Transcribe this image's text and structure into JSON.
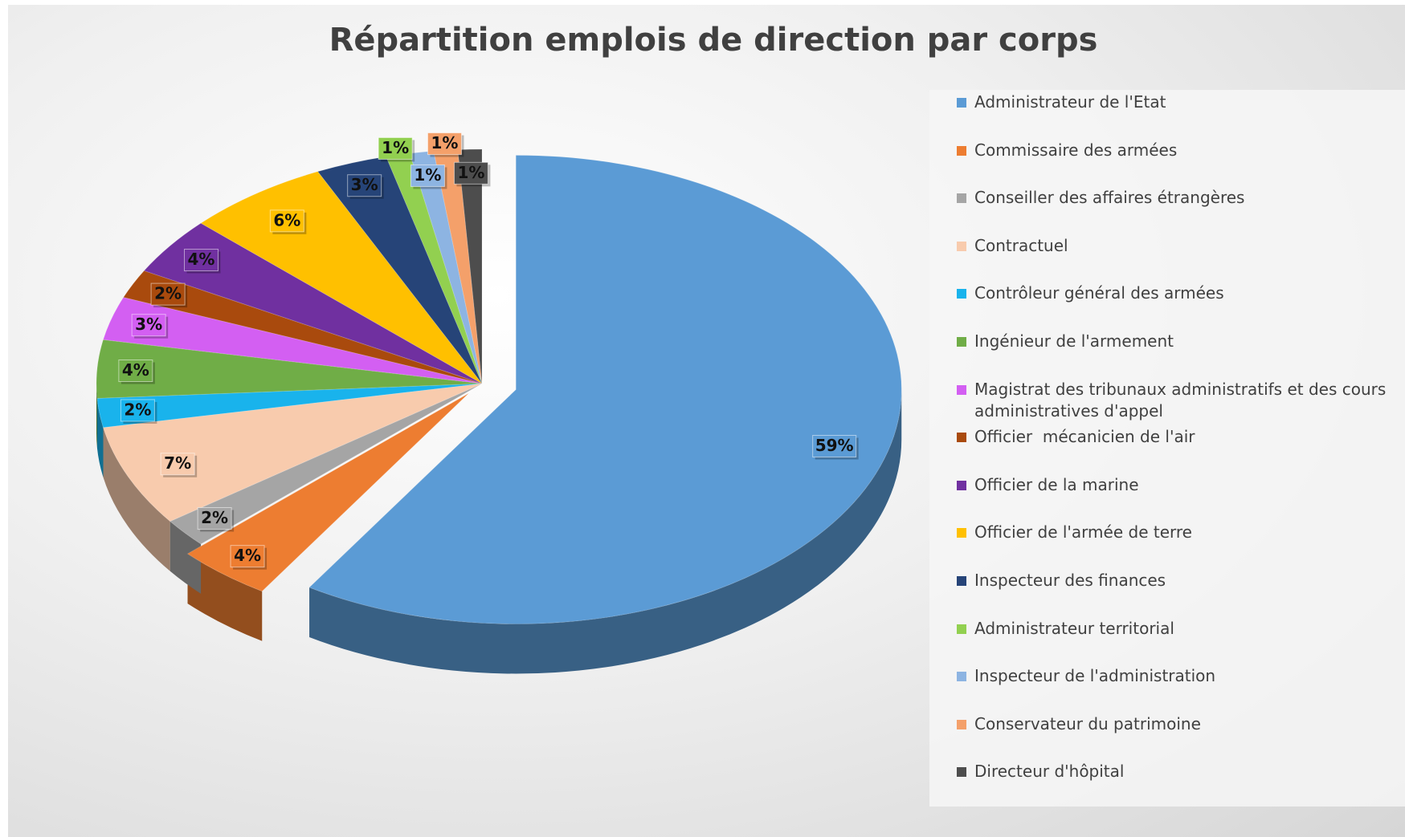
{
  "chart_data": {
    "type": "pie",
    "title": "Répartition emplois de direction par corps",
    "categories": [
      "Administrateur de l'Etat",
      "Commissaire des armées",
      "Conseiller des affaires étrangères",
      "Contractuel",
      "Contrôleur général des armées",
      "Ingénieur de l'armement",
      "Magistrat des tribunaux administratifs et des cours administratives d'appel",
      "Officier  mécanicien de l'air",
      "Officier de la marine",
      "Officier de l'armée de terre",
      "Inspecteur des finances",
      "Administrateur territorial",
      "Inspecteur de l'administration",
      "Conservateur du patrimoine",
      "Directeur d'hôpital"
    ],
    "values": [
      59,
      4,
      2,
      7,
      2,
      4,
      3,
      2,
      4,
      6,
      3,
      1,
      1,
      1,
      1
    ],
    "value_labels": [
      "59%",
      "4%",
      "2%",
      "7%",
      "2%",
      "4%",
      "3%",
      "2%",
      "4%",
      "6%",
      "3%",
      "1%",
      "1%",
      "1%",
      "1%"
    ],
    "colors": [
      "#5b9bd5",
      "#ed7d31",
      "#a5a5a5",
      "#f8cbad",
      "#19b3ec",
      "#70ad47",
      "#d35ff2",
      "#a94a0d",
      "#7030a0",
      "#ffc000",
      "#264478",
      "#92d050",
      "#8db4e2",
      "#f4a06a",
      "#4d4d4d"
    ],
    "legend": "right"
  }
}
